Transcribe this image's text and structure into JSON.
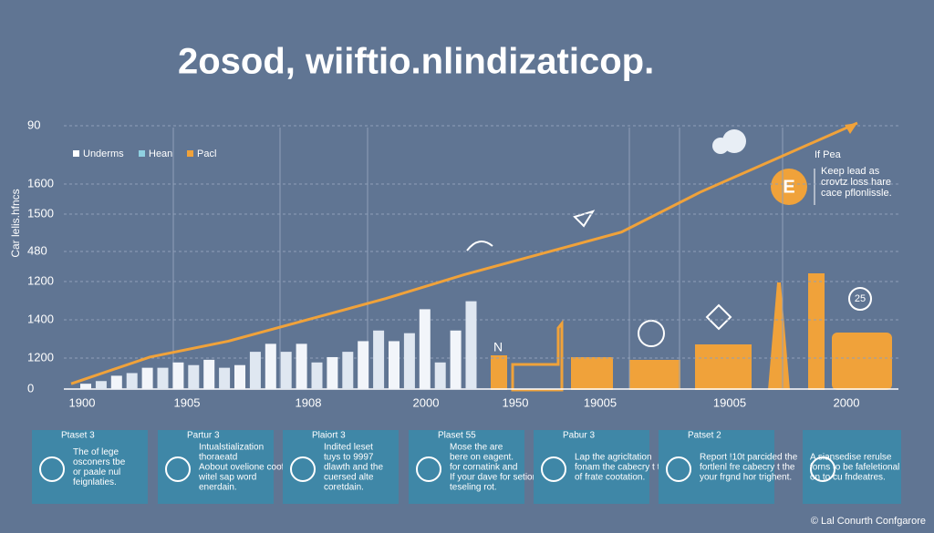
{
  "header": {
    "title": "2osod, wiiftio.nlindizaticop."
  },
  "chart": {
    "axis_label": "Car lelis.hfncs",
    "y_labels": [
      "90",
      "1600",
      "1500",
      "480",
      "1200",
      "1400",
      "1200",
      "0"
    ],
    "x_labels": [
      "1900",
      "1905",
      "1908",
      "2000",
      "1950",
      "19005",
      "19005",
      "2000"
    ],
    "legend": [
      "Underms",
      "Hean",
      "Pacl"
    ],
    "bars": [
      2,
      3,
      5,
      6,
      8,
      8,
      10,
      9,
      11,
      8,
      9,
      14,
      17,
      14,
      17,
      10,
      12,
      14,
      18,
      22,
      18,
      21,
      30,
      10,
      22,
      33
    ],
    "line": [
      2,
      12,
      18,
      26,
      34,
      43,
      51,
      59,
      74,
      87,
      100
    ],
    "marker": "N",
    "note_title": "If Pea",
    "note": [
      "Keep lead as",
      "crovtz loss hare",
      "cace pflonlissle."
    ],
    "badge": "E",
    "circle": "25"
  },
  "panels": [
    {
      "title": "Ptaset 3",
      "lines": [
        "The of lege",
        "osconers tbe",
        "or paale nul",
        "feignlaties."
      ]
    },
    {
      "title": "Partur 3",
      "lines": [
        "Intualstialization",
        "thoraeatd",
        "Aobout ovelione cooft or",
        "witel sap word",
        "enerdain."
      ]
    },
    {
      "title": "Plaiort 3",
      "lines": [
        "Indited leset",
        "tuys to 9997",
        "dlawth and the",
        "cuersed alte",
        "coretdain."
      ]
    },
    {
      "title": "Plaset 55",
      "lines": [
        "Mose the are",
        "bere on eagent.",
        "for cornatink and",
        "If your dave for setion al",
        "teseling rot."
      ]
    },
    {
      "title": "Pabur 3",
      "lines": [
        "Lap the agricltation",
        "fonam the cabecry t the",
        "of frate cootation."
      ]
    },
    {
      "title": "Patset 2",
      "lines": [
        "Report !10t parcided the",
        "fortlenl fre cabecry t the",
        "your frgnd hor trighent."
      ]
    },
    {
      "title": null,
      "lines": [
        "A siansedise rerulse",
        "forns to be fafeletional",
        "on to cu fndeatres."
      ]
    }
  ],
  "footer": "© Lal Conurth Confgarore"
}
